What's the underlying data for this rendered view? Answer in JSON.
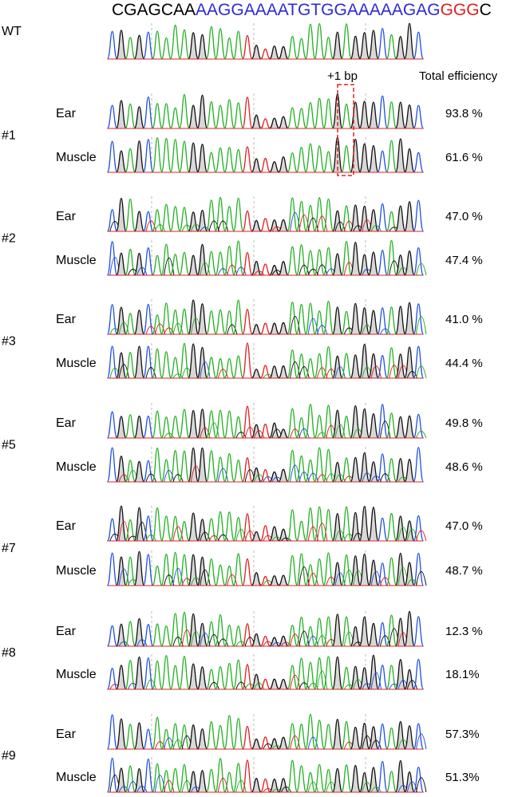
{
  "header": {
    "sequence": [
      {
        "text": "CGAGCAA",
        "color": "#000000"
      },
      {
        "text": "AAGGAAAATGTGGAAAAAGAG",
        "color": "#2b2bd6"
      },
      {
        "text": "GGG",
        "color": "#e0201c"
      },
      {
        "text": "C",
        "color": "#000000"
      }
    ]
  },
  "labels": {
    "wt": "WT",
    "insertion": "+1 bp",
    "efficiency_header": "Total efficiency"
  },
  "samples": [
    {
      "id": "#1",
      "rows": [
        {
          "tissue": "Ear",
          "efficiency": "93.8 %"
        },
        {
          "tissue": "Muscle",
          "efficiency": "61.6 %"
        }
      ]
    },
    {
      "id": "#2",
      "rows": [
        {
          "tissue": "Ear",
          "efficiency": "47.0 %"
        },
        {
          "tissue": "Muscle",
          "efficiency": "47.4 %"
        }
      ]
    },
    {
      "id": "#3",
      "rows": [
        {
          "tissue": "Ear",
          "efficiency": "41.0 %"
        },
        {
          "tissue": "Muscle",
          "efficiency": "44.4 %"
        }
      ]
    },
    {
      "id": "#5",
      "rows": [
        {
          "tissue": "Ear",
          "efficiency": "49.8 %"
        },
        {
          "tissue": "Muscle",
          "efficiency": "48.6 %"
        }
      ]
    },
    {
      "id": "#7",
      "rows": [
        {
          "tissue": "Ear",
          "efficiency": "47.0 %"
        },
        {
          "tissue": "Muscle",
          "efficiency": "48.7 %"
        }
      ]
    },
    {
      "id": "#8",
      "rows": [
        {
          "tissue": "Ear",
          "efficiency": "12.3 %"
        },
        {
          "tissue": "Muscle",
          "efficiency": "18.1%"
        }
      ]
    },
    {
      "id": "#9",
      "rows": [
        {
          "tissue": "Ear",
          "efficiency": "57.3%"
        },
        {
          "tissue": "Muscle",
          "efficiency": "51.3%"
        }
      ]
    }
  ]
}
